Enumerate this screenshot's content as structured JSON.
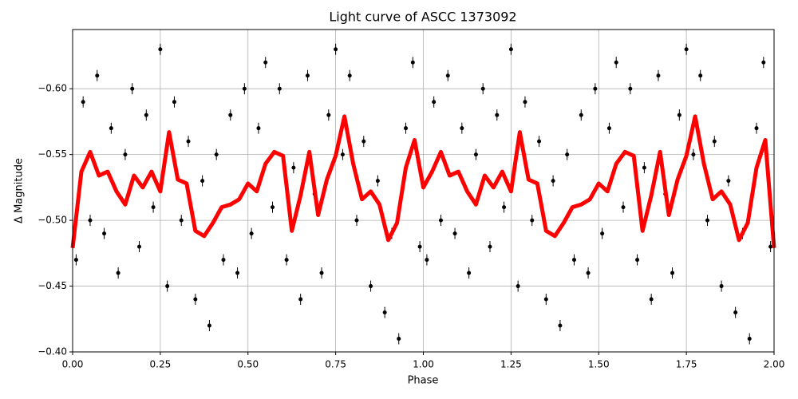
{
  "chart_data": {
    "type": "scatter",
    "title": "Light curve of ASCC 1373092",
    "x_label": "Phase",
    "y_label": "Δ Magnitude",
    "xlim": [
      0,
      2
    ],
    "ylim": [
      -0.4,
      -0.645
    ],
    "grid": true,
    "xticks": [
      {
        "value": 0,
        "label": "0.00"
      },
      {
        "value": 0.25,
        "label": "0.25"
      },
      {
        "value": 0.5,
        "label": "0.50"
      },
      {
        "value": 0.75,
        "label": "0.75"
      },
      {
        "value": 1,
        "label": "1.00"
      },
      {
        "value": 1.25,
        "label": "1.25"
      },
      {
        "value": 1.5,
        "label": "1.50"
      },
      {
        "value": 1.75,
        "label": "1.75"
      },
      {
        "value": 2,
        "label": "2.00"
      }
    ],
    "yticks": [
      {
        "value": -0.6,
        "label": "−0.60"
      },
      {
        "value": -0.55,
        "label": "−0.55"
      },
      {
        "value": -0.5,
        "label": "−0.50"
      },
      {
        "value": -0.45,
        "label": "−0.45"
      },
      {
        "value": -0.4,
        "label": "−0.40"
      }
    ],
    "points": {
      "color": "#000000",
      "x": [
        0.01,
        0.03,
        0.05,
        0.07,
        0.09,
        0.11,
        0.13,
        0.15,
        0.17,
        0.19,
        0.21,
        0.23,
        0.25,
        0.27,
        0.29,
        0.31,
        0.33,
        0.35,
        0.37,
        0.39,
        0.41,
        0.43,
        0.45,
        0.47,
        0.49,
        0.51,
        0.53,
        0.55,
        0.57,
        0.59,
        0.61,
        0.63,
        0.65,
        0.67,
        0.69,
        0.71,
        0.73,
        0.75,
        0.77,
        0.79,
        0.81,
        0.83,
        0.85,
        0.87,
        0.89,
        0.91,
        0.93,
        0.95,
        0.97,
        0.99,
        1.01,
        1.03,
        1.05,
        1.07,
        1.09,
        1.11,
        1.13,
        1.15,
        1.17,
        1.19,
        1.21,
        1.23,
        1.25,
        1.27,
        1.29,
        1.31,
        1.33,
        1.35,
        1.37,
        1.39,
        1.41,
        1.43,
        1.45,
        1.47,
        1.49,
        1.51,
        1.53,
        1.55,
        1.57,
        1.59,
        1.61,
        1.63,
        1.65,
        1.67,
        1.69,
        1.71,
        1.73,
        1.75,
        1.77,
        1.79,
        1.81,
        1.83,
        1.85,
        1.87,
        1.89,
        1.91,
        1.93,
        1.95,
        1.97,
        1.99
      ],
      "values": [
        -0.47,
        -0.59,
        -0.5,
        -0.61,
        -0.49,
        -0.57,
        -0.46,
        -0.55,
        -0.6,
        -0.48,
        -0.58,
        -0.51,
        -0.63,
        -0.45,
        -0.59,
        -0.5,
        -0.56,
        -0.44,
        -0.53,
        -0.42,
        -0.55,
        -0.47,
        -0.58,
        -0.46,
        -0.6,
        -0.49,
        -0.57,
        -0.62,
        -0.51,
        -0.6,
        -0.47,
        -0.54,
        -0.44,
        -0.61,
        -0.52,
        -0.46,
        -0.58,
        -0.63,
        -0.55,
        -0.61,
        -0.5,
        -0.56,
        -0.45,
        -0.53,
        -0.43,
        -0.49,
        -0.41,
        -0.57,
        -0.62,
        -0.48,
        -0.47,
        -0.59,
        -0.5,
        -0.61,
        -0.49,
        -0.57,
        -0.46,
        -0.55,
        -0.6,
        -0.48,
        -0.58,
        -0.51,
        -0.63,
        -0.45,
        -0.59,
        -0.5,
        -0.56,
        -0.44,
        -0.53,
        -0.42,
        -0.55,
        -0.47,
        -0.58,
        -0.46,
        -0.6,
        -0.49,
        -0.57,
        -0.62,
        -0.51,
        -0.6,
        -0.47,
        -0.54,
        -0.44,
        -0.61,
        -0.52,
        -0.46,
        -0.58,
        -0.63,
        -0.55,
        -0.61,
        -0.5,
        -0.56,
        -0.45,
        -0.53,
        -0.43,
        -0.49,
        -0.41,
        -0.57,
        -0.62,
        -0.48
      ]
    },
    "curve": {
      "color": "#ff0000",
      "x": [
        0,
        0.025,
        0.05,
        0.075,
        0.1,
        0.125,
        0.15,
        0.175,
        0.2,
        0.225,
        0.25,
        0.275,
        0.3,
        0.325,
        0.35,
        0.375,
        0.4,
        0.425,
        0.45,
        0.475,
        0.5,
        0.525,
        0.55,
        0.575,
        0.6,
        0.625,
        0.65,
        0.675,
        0.7,
        0.725,
        0.75,
        0.775,
        0.8,
        0.825,
        0.85,
        0.875,
        0.9,
        0.925,
        0.95,
        0.975,
        1,
        1.025,
        1.05,
        1.075,
        1.1,
        1.125,
        1.15,
        1.175,
        1.2,
        1.225,
        1.25,
        1.275,
        1.3,
        1.325,
        1.35,
        1.375,
        1.4,
        1.425,
        1.45,
        1.475,
        1.5,
        1.525,
        1.55,
        1.575,
        1.6,
        1.625,
        1.65,
        1.675,
        1.7,
        1.725,
        1.75,
        1.775,
        1.8,
        1.825,
        1.85,
        1.875,
        1.9,
        1.925,
        1.95,
        1.975,
        2
      ],
      "values": [
        -0.479,
        -0.537,
        -0.552,
        -0.534,
        -0.537,
        -0.522,
        -0.512,
        -0.534,
        -0.525,
        -0.537,
        -0.522,
        -0.567,
        -0.531,
        -0.528,
        -0.492,
        -0.488,
        -0.498,
        -0.51,
        -0.512,
        -0.516,
        -0.528,
        -0.522,
        -0.543,
        -0.552,
        -0.549,
        -0.492,
        -0.519,
        -0.552,
        -0.504,
        -0.531,
        -0.549,
        -0.579,
        -0.543,
        -0.516,
        -0.522,
        -0.512,
        -0.485,
        -0.498,
        -0.54,
        -0.561,
        -0.525,
        -0.537,
        -0.552,
        -0.534,
        -0.537,
        -0.522,
        -0.512,
        -0.534,
        -0.525,
        -0.537,
        -0.522,
        -0.567,
        -0.531,
        -0.528,
        -0.492,
        -0.488,
        -0.498,
        -0.51,
        -0.512,
        -0.516,
        -0.528,
        -0.522,
        -0.543,
        -0.552,
        -0.549,
        -0.492,
        -0.519,
        -0.552,
        -0.504,
        -0.531,
        -0.549,
        -0.579,
        -0.543,
        -0.516,
        -0.522,
        -0.512,
        -0.485,
        -0.498,
        -0.54,
        -0.561,
        -0.479
      ]
    }
  }
}
